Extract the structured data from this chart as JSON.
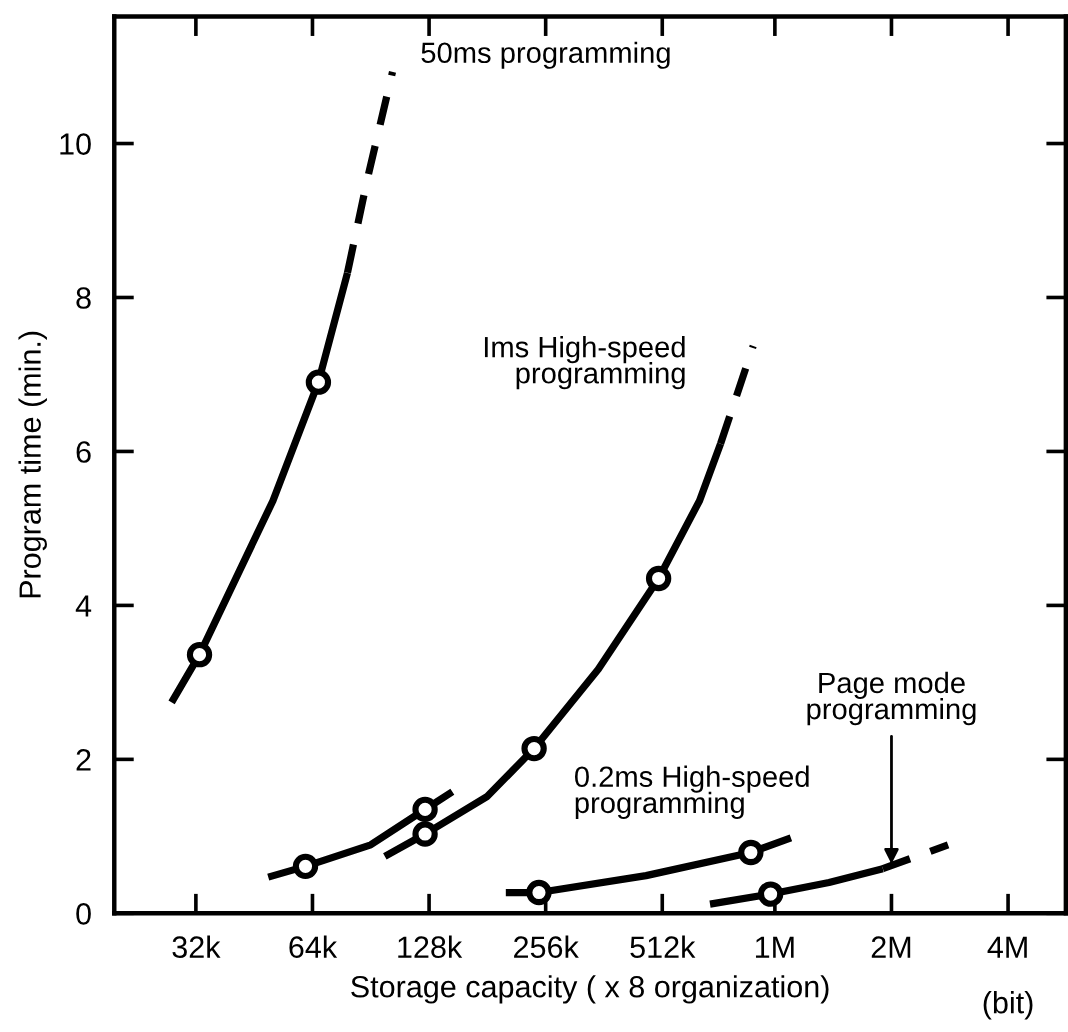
{
  "chart_data": {
    "type": "line",
    "xlabel": "Storage capacity ( x 8 organization)",
    "ylabel": "Program time (min.)",
    "log": "x",
    "xlim": [
      19700,
      5640000
    ],
    "ylim": [
      0,
      11.65
    ],
    "xticks": [
      {
        "value": 32000,
        "label": "32k"
      },
      {
        "value": 64000,
        "label": "64k"
      },
      {
        "value": 128000,
        "label": "128k"
      },
      {
        "value": 256000,
        "label": "256k"
      },
      {
        "value": 512000,
        "label": "512k"
      },
      {
        "value": 1000000,
        "label": "1M"
      },
      {
        "value": 2000000,
        "label": "2M"
      },
      {
        "value": 4000000,
        "label": "4M"
      }
    ],
    "yticks": [
      0,
      2,
      4,
      6,
      8,
      10
    ],
    "grid": false,
    "legend": false,
    "series": [
      {
        "line_style": "solid",
        "color": "#000000",
        "x": [
          27700,
          32700,
          50600,
          66300,
          78800
        ],
        "values": [
          2.74,
          3.36,
          5.36,
          6.9,
          8.32
        ]
      },
      {
        "line_style": "dashed",
        "color": "#000000",
        "x": [
          78800,
          88600,
          103000
        ],
        "values": [
          8.32,
          9.53,
          10.93
        ]
      },
      {
        "line_style": "solid",
        "color": "#000000",
        "x": [
          98400,
          125000,
          181000,
          239000,
          350000,
          501000,
          639000,
          724000
        ],
        "values": [
          0.74,
          1.03,
          1.52,
          2.14,
          3.17,
          4.35,
          5.36,
          6.1
        ]
      },
      {
        "line_style": "dashed",
        "color": "#000000",
        "x": [
          724000,
          879000
        ],
        "values": [
          6.1,
          7.37
        ]
      },
      {
        "line_style": "solid",
        "color": "#000000",
        "x": [
          49200,
          61400,
          90500,
          125000,
          147000
        ],
        "values": [
          0.47,
          0.61,
          0.89,
          1.35,
          1.58
        ]
      },
      {
        "line_style": "solid",
        "color": "#000000",
        "x": [
          202000,
          246000,
          465000,
          867000,
          1100000
        ],
        "values": [
          0.27,
          0.27,
          0.49,
          0.79,
          0.98
        ]
      },
      {
        "line_style": "solid",
        "color": "#000000",
        "x": [
          680000,
          975000,
          1380000,
          1900000
        ],
        "values": [
          0.12,
          0.25,
          0.4,
          0.58
        ]
      },
      {
        "line_style": "dashed",
        "color": "#000000",
        "x": [
          1900000,
          2800000
        ],
        "values": [
          0.58,
          0.89
        ]
      },
      {
        "type": "scatter",
        "marker": "circle",
        "color": "#000000",
        "x": [
          32700,
          66300,
          125000,
          239000,
          501000,
          61400,
          125000,
          246000,
          867000,
          975000
        ],
        "values": [
          3.36,
          6.9,
          1.03,
          2.14,
          4.35,
          0.61,
          1.35,
          0.27,
          0.79,
          0.25
        ]
      }
    ],
    "annotations": [
      {
        "text": "50ms programming",
        "x": 103000,
        "y": 10.93
      },
      {
        "text": "Ims High-speed\nprogramming",
        "x": 879000,
        "y": 7.37
      },
      {
        "text": "0.2ms High-speed\nprogramming",
        "x": 465000,
        "y": 0.49
      },
      {
        "text": "Page mode\nprogramming",
        "x": 2000000,
        "y": 0.64
      },
      "(bit)"
    ]
  }
}
